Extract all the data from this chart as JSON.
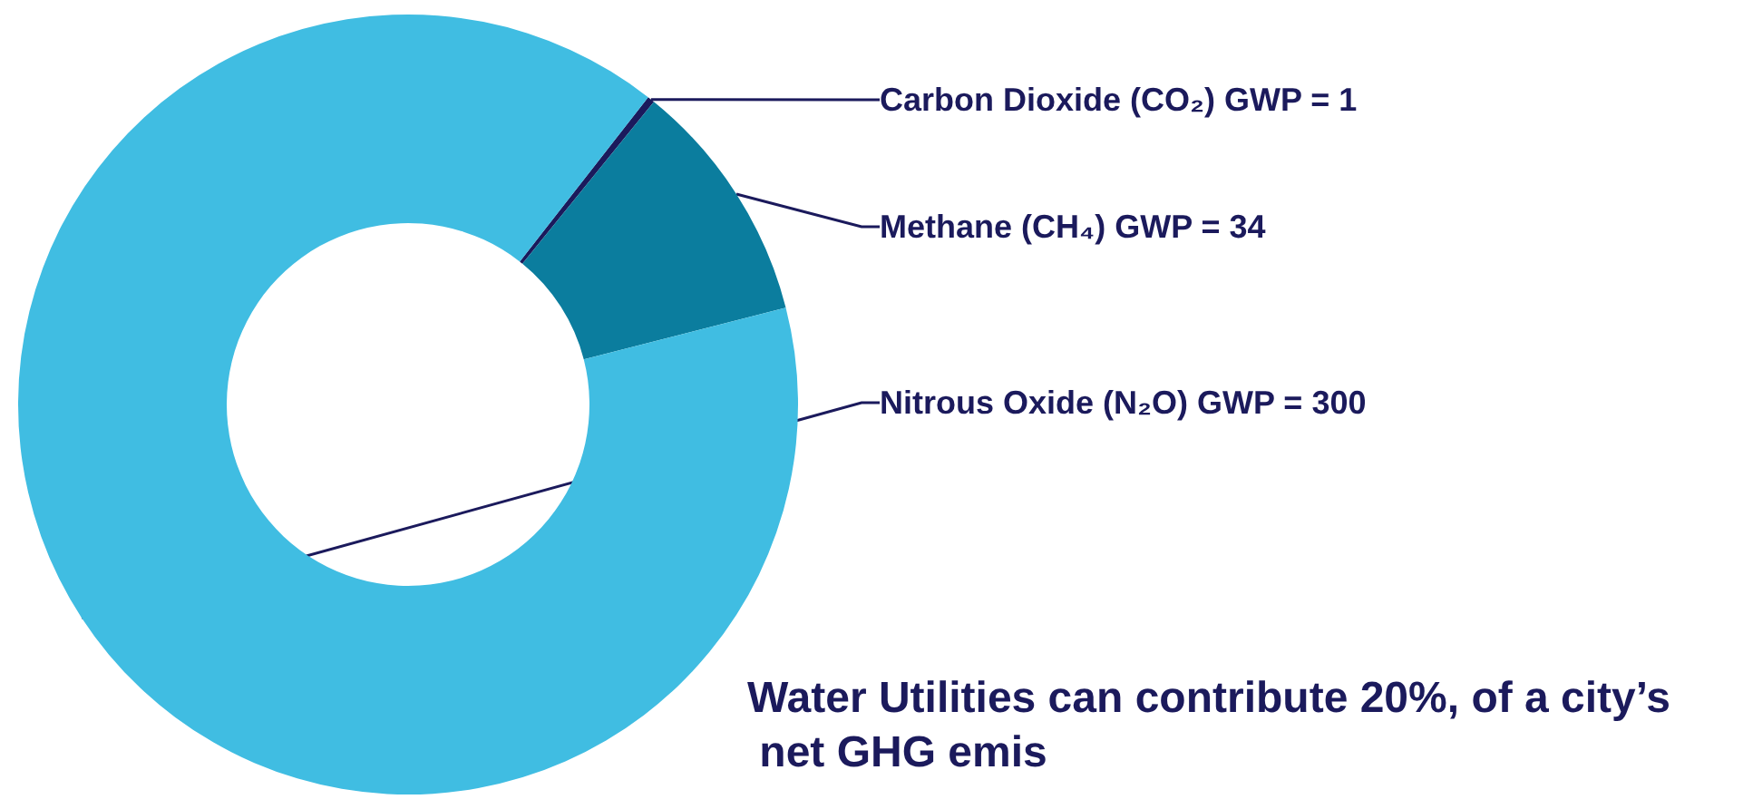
{
  "chart_data": {
    "type": "donut",
    "categories": [
      "Carbon Dioxide (CO₂)",
      "Methane (CH₄)",
      "Nitrous Oxide (N₂O)"
    ],
    "values": [
      1,
      34,
      300
    ],
    "value_labels": [
      "GWP = 1",
      "GWP = 34",
      "GWP = 300"
    ],
    "colors": [
      "#1b1a5c",
      "#0b7d9e",
      "#40bde2"
    ],
    "legend": false,
    "annotations": [
      "Water Utilities can contribute 20%, of a city’s net GHG emis"
    ]
  }
}
